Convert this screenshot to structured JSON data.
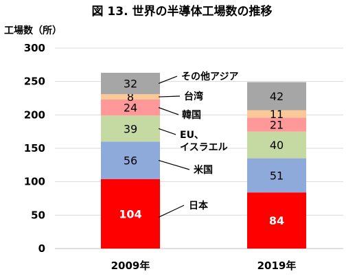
{
  "chart_data": {
    "type": "bar",
    "stacked": true,
    "title": "図 13. 世界の半導体工場数の推移",
    "ylabel": "工場数（所）",
    "xlabel": "",
    "ylim": [
      0,
      300
    ],
    "yticks": [
      0,
      50,
      100,
      150,
      200,
      250,
      300
    ],
    "grid": true,
    "categories": [
      "2009年",
      "2019年"
    ],
    "series": [
      {
        "name": "日本",
        "values": [
          104,
          84
        ],
        "color": "#ff0000",
        "label_color": "#ffffff"
      },
      {
        "name": "米国",
        "values": [
          56,
          51
        ],
        "color": "#8eaadb",
        "label_color": "#000000"
      },
      {
        "name": "EU、イスラエル",
        "name_lines": [
          "EU、",
          "イスラエル"
        ],
        "values": [
          39,
          40
        ],
        "color": "#c5d9a2",
        "label_color": "#000000"
      },
      {
        "name": "韓国",
        "values": [
          24,
          21
        ],
        "color": "#ff9999",
        "label_color": "#000000"
      },
      {
        "name": "台湾",
        "values": [
          8,
          11
        ],
        "color": "#fbc997",
        "label_color": "#000000"
      },
      {
        "name": "その他アジア",
        "values": [
          32,
          42
        ],
        "color": "#a6a6a6",
        "label_color": "#000000"
      }
    ]
  }
}
